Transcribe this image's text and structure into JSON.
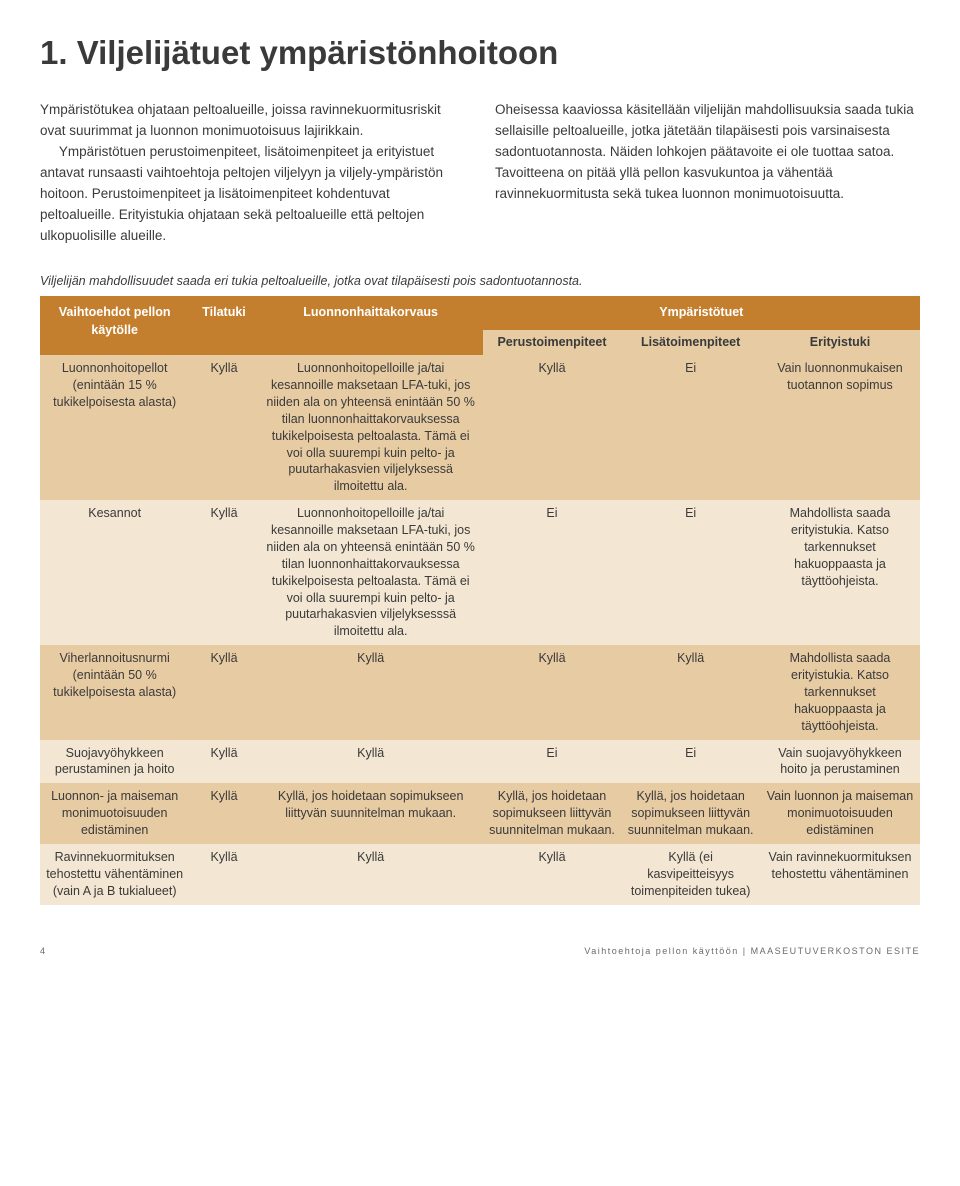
{
  "heading": "1. Viljelijätuet ympäristönhoitoon",
  "intro": {
    "left_p1": "Ympäristötukea ohjataan peltoalueille, joissa ravinnekuormitusriskit ovat suurimmat ja luonnon monimuotoisuus lajirikkain.",
    "left_p2": "Ympäristötuen perustoimenpiteet, lisätoimenpiteet ja erityistuet antavat runsaasti vaihtoehtoja peltojen viljelyyn ja viljely-ympäristön hoitoon. Perustoimenpiteet ja lisätoimenpiteet kohdentuvat peltoalueille. Erityistukia ohjataan sekä peltoalueille että peltojen ulkopuolisille alueille.",
    "right_p1": "Oheisessa kaaviossa käsitellään viljelijän mahdollisuuksia saada tukia sellaisille peltoalueille, jotka jätetään tilapäisesti pois varsinaisesta sadontuotannosta. Näiden lohkojen päätavoite ei ole tuottaa satoa. Tavoitteena on pitää yllä pellon kasvukuntoa ja vähentää ravinnekuormitusta sekä tukea luonnon monimuotoisuutta."
  },
  "caption": "Viljelijän mahdollisuudet saada eri tukia peltoalueille, jotka ovat tilapäisesti pois sadontuotannosta.",
  "table": {
    "header1": {
      "options": "Vaihtoehdot pellon käytölle",
      "tilatuki": "Tilatuki",
      "lfa": "Luonnonhaittakorvaus",
      "ymp": "Ympäristötuet"
    },
    "header2": {
      "perus": "Perustoimenpiteet",
      "lisa": "Lisätoimenpiteet",
      "eri": "Erityistuki"
    },
    "rows": [
      {
        "option": "Luonnonhoitopellot (enintään 15 % tukikelpoisesta alasta)",
        "tilatuki": "Kyllä",
        "lfa": "Luonnonhoitopelloille ja/tai kesannoille maksetaan LFA-tuki, jos niiden ala on yhteensä enintään 50 % tilan luonnonhaittakorvauksessa tukikelpoisesta peltoalasta. Tämä ei voi olla suurempi kuin pelto- ja puutarhakasvien viljelyksessä ilmoitettu ala.",
        "perus": "Kyllä",
        "lisa": "Ei",
        "eri": "Vain luonnonmukaisen tuotannon sopimus"
      },
      {
        "option": "Kesannot",
        "tilatuki": "Kyllä",
        "lfa": "Luonnonhoitopelloille ja/tai kesannoille maksetaan LFA-tuki, jos niiden ala on yhteensä enintään 50 % tilan luonnonhaittakorvauksessa tukikelpoisesta peltoalasta. Tämä ei voi olla suurempi kuin pelto- ja puutarhakasvien viljelyksesssä ilmoitettu ala.",
        "perus": "Ei",
        "lisa": "Ei",
        "eri": "Mahdollista saada erityistukia. Katso tarkennukset hakuoppaasta ja täyttöohjeista."
      },
      {
        "option": "Viherlannoitusnurmi (enintään 50 % tukikelpoisesta alasta)",
        "tilatuki": "Kyllä",
        "lfa": "Kyllä",
        "perus": "Kyllä",
        "lisa": "Kyllä",
        "eri": "Mahdollista saada erityistukia. Katso tarkennukset hakuoppaasta ja täyttöohjeista."
      },
      {
        "option": "Suojavyöhykkeen perustaminen ja hoito",
        "tilatuki": "Kyllä",
        "lfa": "Kyllä",
        "perus": "Ei",
        "lisa": "Ei",
        "eri": "Vain suojavyöhykkeen hoito ja perustaminen"
      },
      {
        "option": "Luonnon- ja maiseman monimuotoisuuden edistäminen",
        "tilatuki": "Kyllä",
        "lfa": "Kyllä, jos hoidetaan sopimukseen liittyvän suunnitelman mukaan.",
        "perus": "Kyllä, jos hoidetaan sopimukseen liittyvän suunnitelman mukaan.",
        "lisa": "Kyllä, jos hoidetaan sopimukseen liittyvän suunnitelman mukaan.",
        "eri": "Vain luonnon ja maiseman monimuotoisuuden edistäminen"
      },
      {
        "option": "Ravinnekuormituksen tehostettu vähentäminen (vain A ja B tukialueet)",
        "tilatuki": "Kyllä",
        "lfa": "Kyllä",
        "perus": "Kyllä",
        "lisa": "Kyllä (ei kasvipeitteisyys toimenpiteiden tukea)",
        "eri": "Vain ravinnekuormituksen tehostettu vähentäminen"
      }
    ]
  },
  "footer": {
    "page": "4",
    "right": "Vaihtoehtoja pellon käyttöön | MAASEUTUVERKOSTON ESITE"
  },
  "colors": {
    "header_bg": "#c47f2e",
    "header_fg": "#ffffff",
    "row_odd": "#e7cba3",
    "row_even": "#f3e6d2",
    "text": "#3a3a3a"
  }
}
